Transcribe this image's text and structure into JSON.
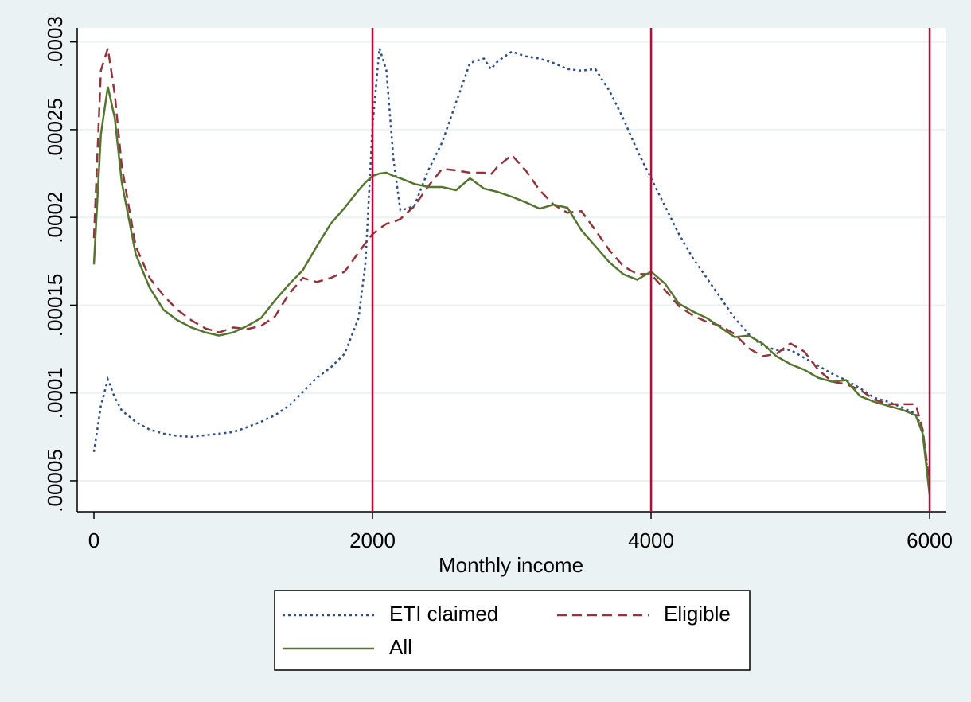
{
  "chart_data": {
    "type": "line",
    "x_label": "Monthly income",
    "x": [
      0,
      50,
      100,
      150,
      200,
      300,
      400,
      500,
      600,
      700,
      800,
      900,
      1000,
      1100,
      1200,
      1300,
      1400,
      1500,
      1600,
      1700,
      1800,
      1900,
      1950,
      2000,
      2050,
      2100,
      2150,
      2200,
      2300,
      2400,
      2500,
      2600,
      2700,
      2800,
      2850,
      2900,
      3000,
      3100,
      3200,
      3300,
      3400,
      3500,
      3600,
      3700,
      3800,
      3900,
      4000,
      4100,
      4200,
      4300,
      4400,
      4500,
      4600,
      4700,
      4800,
      4900,
      5000,
      5100,
      5200,
      5300,
      5400,
      5500,
      5600,
      5700,
      5800,
      5900,
      5950,
      6000
    ],
    "series": [
      {
        "name": "ETI claimed",
        "color": "#2f4f7f",
        "dash": "3,4",
        "values": [
          6.64e-05,
          9.27e-05,
          0.0001077,
          9.73e-05,
          9e-05,
          8.36e-05,
          7.91e-05,
          7.68e-05,
          7.55e-05,
          7.5e-05,
          7.59e-05,
          7.68e-05,
          7.77e-05,
          8.05e-05,
          8.36e-05,
          8.73e-05,
          9.27e-05,
          0.0001005,
          0.0001086,
          0.0001145,
          0.0001223,
          0.0001427,
          0.0001745,
          0.000252,
          0.0002964,
          0.0002836,
          0.0002336,
          0.000204,
          0.0002064,
          0.0002268,
          0.0002427,
          0.0002655,
          0.000288,
          0.0002905,
          0.0002845,
          0.000289,
          0.0002945,
          0.0002918,
          0.0002905,
          0.000288,
          0.0002845,
          0.0002836,
          0.0002845,
          0.0002723,
          0.0002564,
          0.0002382,
          0.0002223,
          0.0002064,
          0.0001905,
          0.0001768,
          0.0001655,
          0.000154,
          0.0001427,
          0.0001336,
          0.0001268,
          0.0001245,
          0.0001245,
          0.00012,
          0.0001155,
          0.0001109,
          0.0001073,
          0.0001027,
          9.73e-05,
          9.5e-05,
          9.18e-05,
          8.82e-05,
          7.91e-05,
          4.5e-05
        ]
      },
      {
        "name": "Eligible",
        "color": "#90353b",
        "dash": "12,7",
        "values": [
          0.0001882,
          0.0002836,
          0.0002964,
          0.00027,
          0.0002291,
          0.0001836,
          0.0001655,
          0.0001555,
          0.0001473,
          0.0001414,
          0.0001368,
          0.0001345,
          0.0001373,
          0.0001364,
          0.0001382,
          0.0001436,
          0.0001564,
          0.0001655,
          0.0001632,
          0.0001655,
          0.0001691,
          0.00018,
          0.0001855,
          0.0001905,
          0.0001936,
          0.0001964,
          0.0001973,
          0.0001991,
          0.0002064,
          0.0002177,
          0.0002277,
          0.0002268,
          0.0002255,
          0.0002255,
          0.0002245,
          0.0002291,
          0.0002355,
          0.0002268,
          0.0002155,
          0.0002073,
          0.0002027,
          0.0002036,
          0.0001927,
          0.0001814,
          0.0001723,
          0.0001677,
          0.0001677,
          0.0001586,
          0.0001495,
          0.0001441,
          0.0001405,
          0.0001382,
          0.0001336,
          0.0001255,
          0.0001209,
          0.0001223,
          0.0001282,
          0.0001236,
          0.0001132,
          0.0001064,
          0.000105,
          0.0001018,
          9.64e-05,
          9.36e-05,
          9.36e-05,
          9.36e-05,
          7.91e-05,
          4.82e-05
        ]
      },
      {
        "name": "All",
        "color": "#55752f",
        "dash": "none",
        "values": [
          0.0001732,
          0.0002473,
          0.0002745,
          0.0002564,
          0.00022,
          0.0001791,
          0.00016,
          0.0001473,
          0.0001414,
          0.0001373,
          0.0001345,
          0.0001327,
          0.0001345,
          0.0001382,
          0.0001427,
          0.0001527,
          0.0001618,
          0.00017,
          0.0001836,
          0.0001964,
          0.0002055,
          0.0002155,
          0.00022,
          0.0002236,
          0.000225,
          0.0002255,
          0.0002236,
          0.0002223,
          0.0002191,
          0.0002173,
          0.0002173,
          0.0002155,
          0.0002223,
          0.0002164,
          0.0002155,
          0.0002145,
          0.0002118,
          0.0002086,
          0.000205,
          0.0002073,
          0.0002055,
          0.0001927,
          0.0001836,
          0.0001745,
          0.0001677,
          0.0001645,
          0.0001691,
          0.0001623,
          0.0001509,
          0.0001464,
          0.0001427,
          0.0001373,
          0.0001318,
          0.0001327,
          0.0001282,
          0.0001209,
          0.0001164,
          0.0001132,
          0.0001086,
          0.0001064,
          0.0001073,
          9.82e-05,
          9.5e-05,
          9.27e-05,
          9.05e-05,
          8.73e-05,
          7.68e-05,
          4.18e-05
        ]
      }
    ],
    "xlim": [
      -120,
      6114
    ],
    "xticks": [
      0,
      2000,
      4000,
      6000
    ],
    "ylim": [
      3.23e-05,
      0.000308
    ],
    "yticks": [
      {
        "value": 5e-05,
        "label": ".00005"
      },
      {
        "value": 0.0001,
        "label": ".0001"
      },
      {
        "value": 0.00015,
        "label": ".00015"
      },
      {
        "value": 0.0002,
        "label": ".0002"
      },
      {
        "value": 0.00025,
        "label": ".00025"
      },
      {
        "value": 0.0003,
        "label": ".0003"
      }
    ],
    "grid": true,
    "xlines": [
      2000,
      4000,
      6000
    ],
    "xline_color": "#c10534",
    "legend": "bottom"
  }
}
